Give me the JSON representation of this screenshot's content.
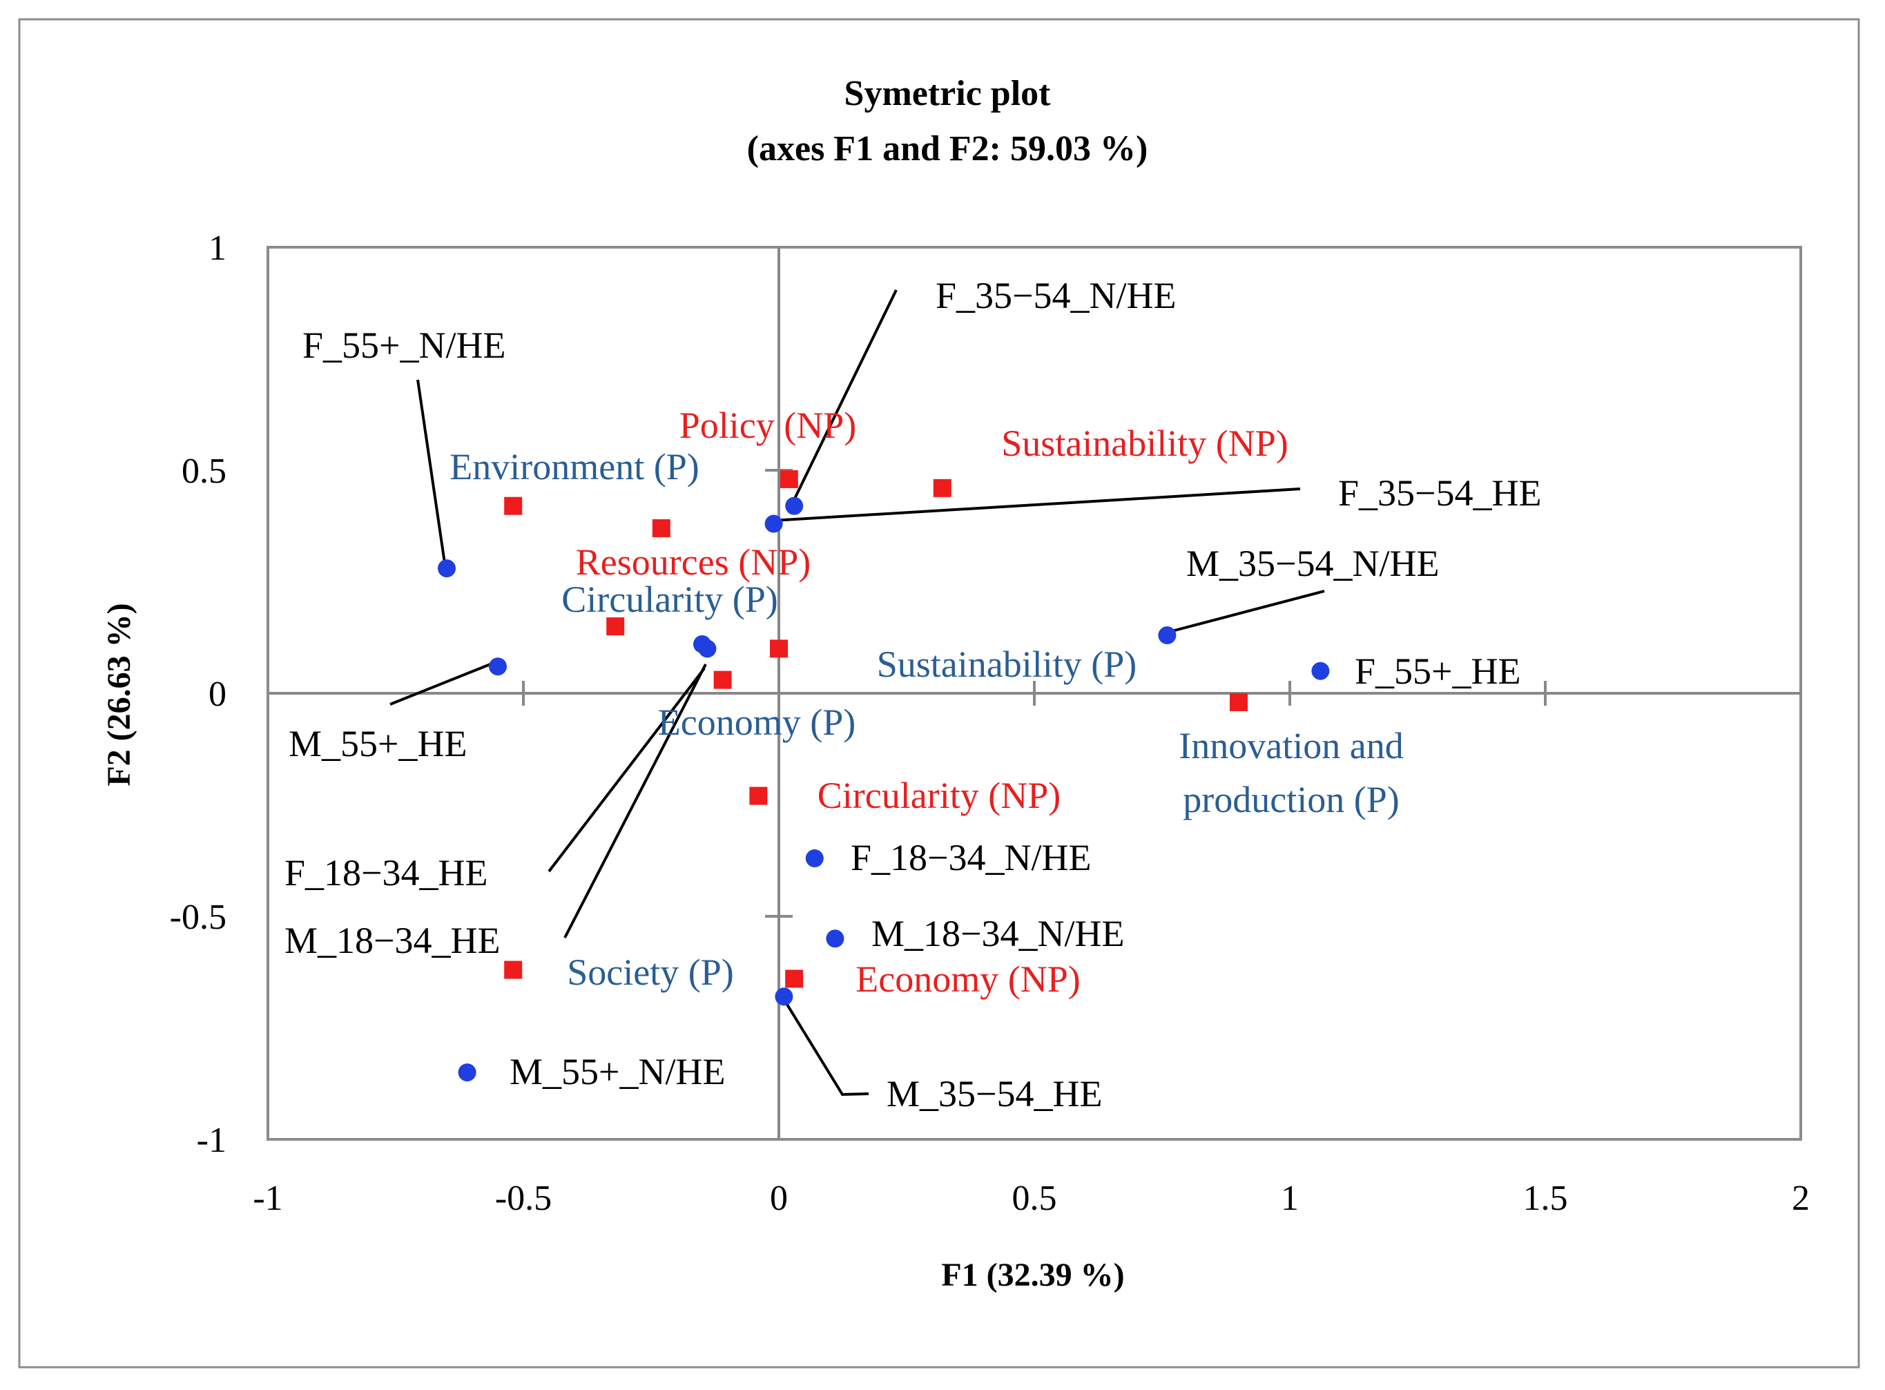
{
  "chart_data": {
    "type": "scatter",
    "title": "Symetric plot",
    "subtitle": "(axes F1 and F2: 59.03 %)",
    "xlabel": "F1 (32.39 %)",
    "ylabel": "F2 (26.63 %)",
    "xlim": [
      -1,
      2
    ],
    "ylim": [
      -1,
      1
    ],
    "x_ticks": [
      "-1",
      "-0.5",
      "0",
      "0.5",
      "1",
      "1.5",
      "2"
    ],
    "y_ticks": [
      "1",
      "0.5",
      "0",
      "-0.5",
      "-1"
    ],
    "grid": false,
    "legend": "none",
    "colors": {
      "respondent_marker": "#1f3fe0",
      "P_label": "#2a5d95",
      "NP_marker": "#ee1c1c",
      "NP_label": "#e81e1e",
      "axis": "#888888",
      "frame": "#888888"
    },
    "series": [
      {
        "marker": "circle",
        "points": [
          {
            "label": "F_55+_N/HE",
            "x": -0.65,
            "y": 0.28
          },
          {
            "label": "M_55+_HE",
            "x": -0.55,
            "y": 0.06
          },
          {
            "label": "F_35−54_N/HE",
            "x": 0.03,
            "y": 0.42
          },
          {
            "label": "F_35−54_HE",
            "x": -0.01,
            "y": 0.38
          },
          {
            "label": "M_35−54_N/HE",
            "x": 0.76,
            "y": 0.13
          },
          {
            "label": "F_55+_HE",
            "x": 1.06,
            "y": 0.05
          },
          {
            "label": "F_18−34_HE",
            "x": -0.15,
            "y": 0.11
          },
          {
            "label": "M_18−34_HE",
            "x": -0.14,
            "y": 0.1
          },
          {
            "label": "F_18−34_N/HE",
            "x": 0.07,
            "y": -0.37
          },
          {
            "label": "M_18−34_N/HE",
            "x": 0.11,
            "y": -0.55
          },
          {
            "label": "M_35−54_HE",
            "x": 0.01,
            "y": -0.68
          },
          {
            "label": "M_55+_N/HE",
            "x": -0.61,
            "y": -0.85
          }
        ]
      },
      {
        "marker": "square",
        "points": [
          {
            "label": "Environment (P)",
            "x": -0.52,
            "y": 0.42
          },
          {
            "label": "Resources (NP)",
            "x": -0.23,
            "y": 0.37
          },
          {
            "label": "Policy (NP)",
            "x": 0.02,
            "y": 0.48
          },
          {
            "label": "Sustainability (NP)",
            "x": 0.32,
            "y": 0.46
          },
          {
            "label": "Circularity (P)",
            "x": -0.32,
            "y": 0.15
          },
          {
            "label": "Economy (P)",
            "x": -0.11,
            "y": 0.03
          },
          {
            "label": "",
            "x": 0.0,
            "y": 0.1
          },
          {
            "label": "Sustainability (P)",
            "x": 0.9,
            "y": -0.02
          },
          {
            "label": "Circularity (NP)",
            "x": -0.04,
            "y": -0.23
          },
          {
            "label": "Society (P)",
            "x": -0.52,
            "y": -0.62
          },
          {
            "label": "Economy (NP)",
            "x": 0.03,
            "y": -0.64
          }
        ]
      }
    ],
    "other_labels": [
      "Innovation and",
      "production (P)"
    ]
  }
}
